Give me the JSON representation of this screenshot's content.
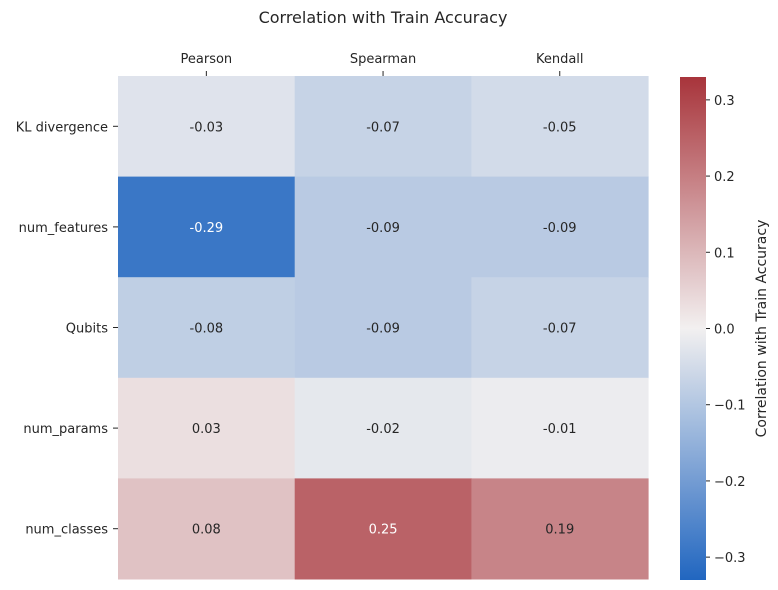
{
  "chart_data": {
    "type": "heatmap",
    "title": "Correlation with Train Accuracy",
    "columns": [
      "Pearson",
      "Spearman",
      "Kendall"
    ],
    "rows": [
      "KL divergence",
      "num_features",
      "Qubits",
      "num_params",
      "num_classes"
    ],
    "values": [
      [
        -0.03,
        -0.07,
        -0.05
      ],
      [
        -0.29,
        -0.09,
        -0.09
      ],
      [
        -0.08,
        -0.09,
        -0.07
      ],
      [
        0.03,
        -0.02,
        -0.01
      ],
      [
        0.08,
        0.25,
        0.19
      ]
    ],
    "labels": [
      [
        "-0.03",
        "-0.07",
        "-0.05"
      ],
      [
        "-0.29",
        "-0.09",
        "-0.09"
      ],
      [
        "-0.08",
        "-0.09",
        "-0.07"
      ],
      [
        "0.03",
        "-0.02",
        "-0.01"
      ],
      [
        "0.08",
        "0.25",
        "0.19"
      ]
    ],
    "colormap": "vlag-diverging",
    "colors": {
      "negative": "#2166c0",
      "neutral": "#f2f0f0",
      "positive": "#a8343b"
    },
    "colorbar": {
      "label": "Correlation with Train Accuracy",
      "vmin": -0.33,
      "vmax": 0.33,
      "ticks": [
        -0.3,
        -0.2,
        -0.1,
        0.0,
        0.1,
        0.2,
        0.3
      ],
      "tick_labels": [
        "−0.3",
        "−0.2",
        "−0.1",
        "0.0",
        "0.1",
        "0.2",
        "0.3"
      ]
    },
    "x_axis_position": "top"
  }
}
